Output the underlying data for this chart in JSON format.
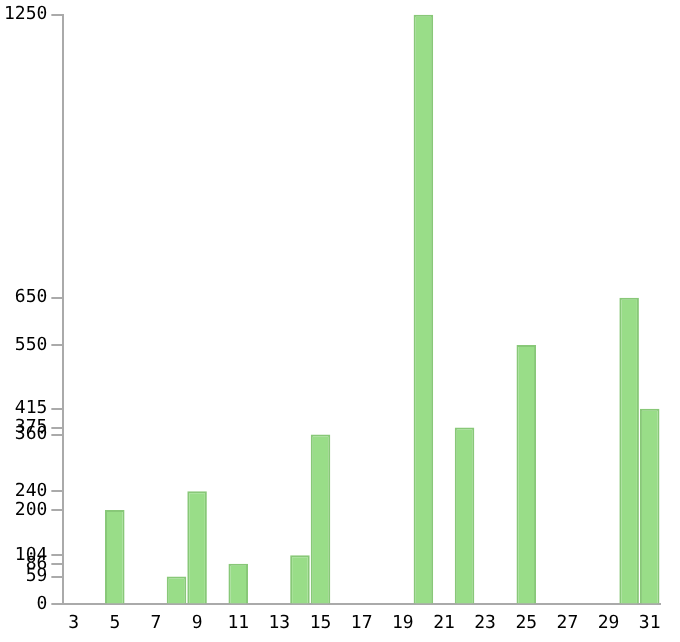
{
  "chart_data": {
    "type": "bar",
    "categories": [
      "3",
      null,
      "5",
      null,
      "7",
      null,
      "9",
      null,
      "11",
      null,
      "13",
      null,
      "15",
      null,
      "17",
      null,
      "19",
      null,
      "21",
      null,
      "23",
      null,
      "25",
      null,
      "27",
      null,
      "29",
      null,
      "31"
    ],
    "values": [
      0,
      0,
      200,
      0,
      0,
      59,
      240,
      0,
      86,
      0,
      0,
      104,
      360,
      0,
      0,
      0,
      0,
      1250,
      0,
      375,
      0,
      0,
      550,
      0,
      0,
      0,
      0,
      650,
      415
    ],
    "color": "#99dd88",
    "ylim": [
      0,
      1250
    ],
    "yticks": [
      0,
      59,
      86,
      104,
      200,
      240,
      360,
      375,
      415,
      550,
      650,
      1250
    ],
    "grid": false,
    "legend": false
  }
}
